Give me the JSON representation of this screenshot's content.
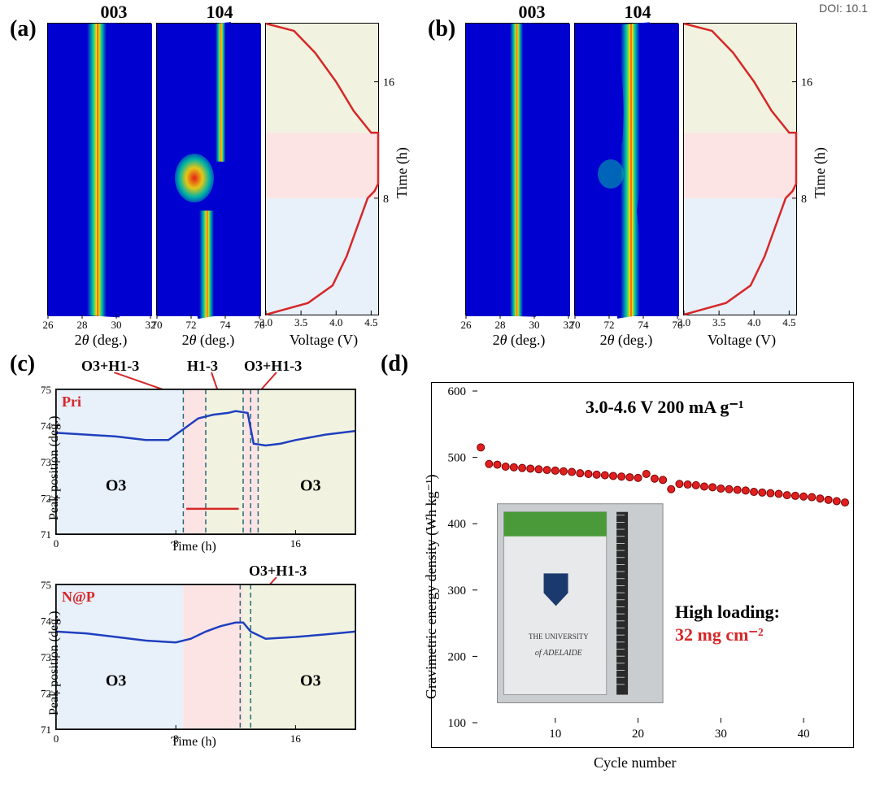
{
  "doi": "DOI: 10.1",
  "labels": {
    "a": "(a)",
    "b": "(b)",
    "c": "(c)",
    "d": "(d)",
    "pri": "Pri",
    "nap": "N@P"
  },
  "top": {
    "col_003": "003",
    "col_104": "104",
    "xaxis": "2θ (deg.)",
    "xaxis_italic_theta": true,
    "voltage_axis": "Voltage (V)",
    "time_axis": "Time (h)",
    "a": {
      "hm003": {
        "xlim": [
          26,
          32
        ],
        "xticks": [
          26,
          28,
          30,
          32
        ]
      },
      "hm104": {
        "xlim": [
          70,
          76
        ],
        "xticks": [
          70,
          72,
          74,
          76
        ]
      },
      "voltage": {
        "xlim": [
          3.0,
          4.6
        ],
        "xticks": [
          3.0,
          3.5,
          4.0,
          4.5
        ],
        "yticks": [
          8,
          16
        ],
        "regions": [
          {
            "from": 0,
            "to": 8,
            "color": "#e8f0fa"
          },
          {
            "from": 8,
            "to": 12.5,
            "color": "#fde4e4"
          },
          {
            "from": 12.5,
            "to": 20,
            "color": "#f1f3e0"
          }
        ],
        "curve": [
          [
            3.0,
            0.0
          ],
          [
            3.6,
            0.8
          ],
          [
            3.95,
            2.0
          ],
          [
            4.15,
            4.0
          ],
          [
            4.3,
            6.0
          ],
          [
            4.45,
            8.0
          ],
          [
            4.55,
            8.5
          ],
          [
            4.6,
            9.0
          ],
          [
            4.6,
            12.5
          ],
          [
            4.5,
            12.5
          ],
          [
            4.25,
            14.0
          ],
          [
            4.0,
            16.0
          ],
          [
            3.7,
            18.0
          ],
          [
            3.4,
            19.5
          ],
          [
            3.0,
            20.0
          ]
        ],
        "curve_color": "#d62728",
        "curve_width": 2.5
      }
    },
    "b": {
      "hm003": {
        "xlim": [
          26,
          32
        ],
        "xticks": [
          26,
          28,
          30,
          32
        ]
      },
      "hm104": {
        "xlim": [
          70,
          76
        ],
        "xticks": [
          70,
          72,
          74,
          76
        ]
      },
      "voltage": {
        "xlim": [
          3.0,
          4.6
        ],
        "xticks": [
          3.0,
          3.5,
          4.0,
          4.5
        ],
        "yticks": [
          8,
          16
        ],
        "regions": [
          {
            "from": 0,
            "to": 8,
            "color": "#e8f0fa"
          },
          {
            "from": 8,
            "to": 12.5,
            "color": "#fde4e4"
          },
          {
            "from": 12.5,
            "to": 20,
            "color": "#f1f3e0"
          }
        ],
        "curve": [
          [
            3.0,
            0.0
          ],
          [
            3.6,
            0.8
          ],
          [
            3.95,
            2.0
          ],
          [
            4.15,
            4.0
          ],
          [
            4.3,
            6.0
          ],
          [
            4.45,
            8.0
          ],
          [
            4.55,
            8.5
          ],
          [
            4.6,
            9.0
          ],
          [
            4.6,
            12.5
          ],
          [
            4.5,
            12.5
          ],
          [
            4.25,
            14.0
          ],
          [
            4.0,
            16.0
          ],
          [
            3.7,
            18.0
          ],
          [
            3.4,
            19.5
          ],
          [
            3.0,
            20.0
          ]
        ],
        "curve_color": "#d62728",
        "curve_width": 2.5
      }
    },
    "heatmap_colors": {
      "bg": "#0000d0",
      "mid": "#00c8a0",
      "peak": "#ffdd00",
      "hot": "#ff2200"
    }
  },
  "panel_c": {
    "xaxis": "Time (h)",
    "yaxis": "Peak position (deg.)",
    "xlim": [
      0,
      20
    ],
    "xticks": [
      0,
      8,
      16
    ],
    "ylim": [
      71,
      75
    ],
    "yticks": [
      71,
      72,
      73,
      74,
      75
    ],
    "annot_top": [
      "O3+H1-3",
      "H1-3",
      "O3+H1-3"
    ],
    "pri": {
      "regions": [
        {
          "from": 0,
          "to": 8.5,
          "color": "#e8f0fa"
        },
        {
          "from": 8.5,
          "to": 10,
          "color": "#fde4e4"
        },
        {
          "from": 10,
          "to": 12.5,
          "color": "#f1f3e0"
        },
        {
          "from": 12.5,
          "to": 13.5,
          "color": "#fde4e4"
        },
        {
          "from": 13.5,
          "to": 20,
          "color": "#f1f3e0"
        }
      ],
      "blue_line": [
        [
          0,
          73.8
        ],
        [
          2,
          73.75
        ],
        [
          4,
          73.7
        ],
        [
          6,
          73.6
        ],
        [
          7.5,
          73.6
        ],
        [
          8.5,
          73.9
        ],
        [
          9.5,
          74.2
        ],
        [
          10.5,
          74.3
        ],
        [
          11.5,
          74.35
        ],
        [
          12,
          74.4
        ],
        [
          12.8,
          74.35
        ],
        [
          13.2,
          73.5
        ],
        [
          14,
          73.45
        ],
        [
          15,
          73.5
        ],
        [
          16,
          73.6
        ],
        [
          18,
          73.75
        ],
        [
          20,
          73.85
        ]
      ],
      "red_line": [
        [
          8.7,
          71.7
        ],
        [
          9.5,
          71.7
        ],
        [
          10.5,
          71.7
        ],
        [
          11.5,
          71.7
        ],
        [
          12.2,
          71.7
        ]
      ],
      "o3_labels": [
        "O3",
        "O3"
      ],
      "dashes": [
        8.5,
        10,
        12.5,
        13,
        13.5
      ]
    },
    "nap": {
      "annot": "O3+H1-3",
      "regions": [
        {
          "from": 0,
          "to": 8.5,
          "color": "#e8f0fa"
        },
        {
          "from": 8.5,
          "to": 12.5,
          "color": "#fde4e4"
        },
        {
          "from": 12.5,
          "to": 13,
          "color": "#f1f3e0"
        },
        {
          "from": 13,
          "to": 20,
          "color": "#f1f3e0"
        }
      ],
      "blue_line": [
        [
          0,
          73.7
        ],
        [
          2,
          73.65
        ],
        [
          4,
          73.55
        ],
        [
          6,
          73.45
        ],
        [
          8,
          73.4
        ],
        [
          9,
          73.5
        ],
        [
          10,
          73.7
        ],
        [
          11,
          73.85
        ],
        [
          12,
          73.95
        ],
        [
          12.5,
          73.95
        ],
        [
          13,
          73.7
        ],
        [
          14,
          73.5
        ],
        [
          16,
          73.55
        ],
        [
          18,
          73.62
        ],
        [
          20,
          73.7
        ]
      ],
      "o3_labels": [
        "O3",
        "O3"
      ],
      "dashes": [
        12.3,
        13
      ]
    },
    "line_colors": {
      "blue": "#1f3fbf",
      "red": "#d62728"
    },
    "dash_color": "#2a6a7a"
  },
  "panel_d": {
    "xaxis": "Cycle number",
    "yaxis": "Gravimetric energy density (Wh kg⁻¹)",
    "xlim": [
      0,
      45
    ],
    "xticks": [
      10,
      20,
      30,
      40
    ],
    "ylim": [
      100,
      600
    ],
    "yticks": [
      100,
      200,
      300,
      400,
      500,
      600
    ],
    "condition": "3.0-4.6 V 200 mA g⁻¹",
    "loading_label": "High loading:",
    "loading_value": "32 mg cm⁻²",
    "points": [
      [
        1,
        515
      ],
      [
        2,
        490
      ],
      [
        3,
        489
      ],
      [
        4,
        486
      ],
      [
        5,
        485
      ],
      [
        6,
        484
      ],
      [
        7,
        483
      ],
      [
        8,
        482
      ],
      [
        9,
        481
      ],
      [
        10,
        480
      ],
      [
        11,
        479
      ],
      [
        12,
        478
      ],
      [
        13,
        476
      ],
      [
        14,
        475
      ],
      [
        15,
        474
      ],
      [
        16,
        473
      ],
      [
        17,
        472
      ],
      [
        18,
        471
      ],
      [
        19,
        470
      ],
      [
        20,
        469
      ],
      [
        21,
        475
      ],
      [
        22,
        468
      ],
      [
        23,
        466
      ],
      [
        24,
        452
      ],
      [
        25,
        460
      ],
      [
        26,
        459
      ],
      [
        27,
        458
      ],
      [
        28,
        456
      ],
      [
        29,
        455
      ],
      [
        30,
        453
      ],
      [
        31,
        452
      ],
      [
        32,
        451
      ],
      [
        33,
        450
      ],
      [
        34,
        448
      ],
      [
        35,
        447
      ],
      [
        36,
        446
      ],
      [
        37,
        445
      ],
      [
        38,
        443
      ],
      [
        39,
        442
      ],
      [
        40,
        441
      ],
      [
        41,
        440
      ],
      [
        42,
        438
      ],
      [
        43,
        436
      ],
      [
        44,
        434
      ],
      [
        45,
        432
      ]
    ],
    "marker": {
      "size": 9,
      "fill": "#e02020",
      "stroke": "#7a0000",
      "stroke_width": 1
    },
    "photo": {
      "bg": "#c9cdd0",
      "label1": "THE UNIVERSITY",
      "label2": "of ADELAIDE"
    }
  }
}
